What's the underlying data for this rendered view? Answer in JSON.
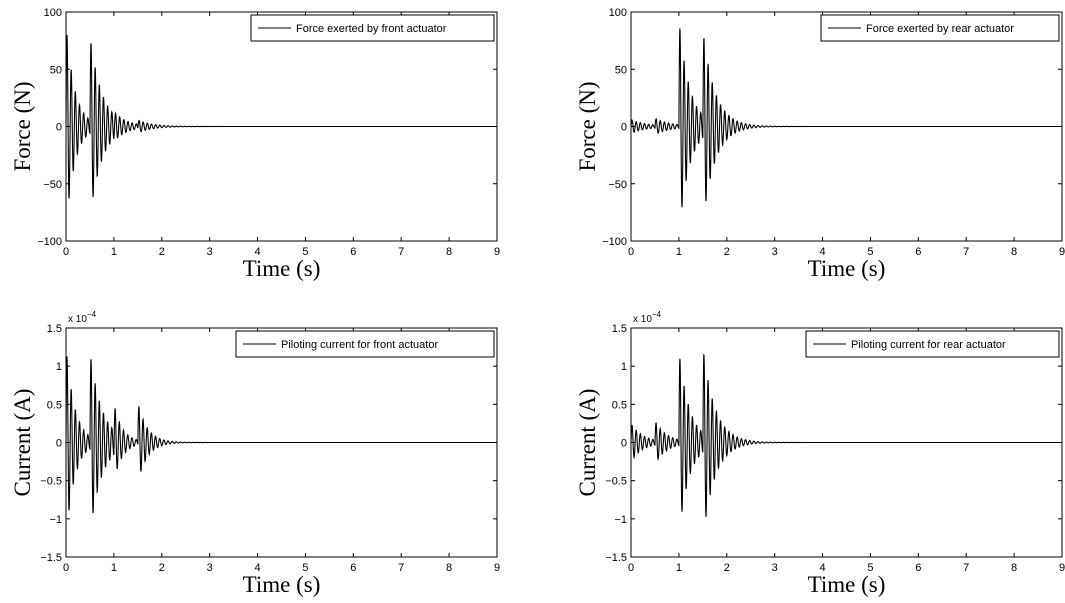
{
  "chart_data": [
    {
      "type": "line",
      "xlabel": "Time (s)",
      "ylabel": "Force (N)",
      "xlim": [
        0,
        9
      ],
      "ylim": [
        -100,
        100
      ],
      "xticks": [
        "0",
        "1",
        "2",
        "3",
        "4",
        "5",
        "6",
        "7",
        "8",
        "9"
      ],
      "yticks": [
        "-100",
        "-50",
        "0",
        "50",
        "100"
      ],
      "exponent_label": "",
      "grid": false,
      "legend_position": "top-right",
      "series": [
        {
          "name": "Force exerted by front actuator",
          "color": "#000000",
          "bursts": [
            {
              "t0": 0.0,
              "amp": 90,
              "decay": 5.5,
              "freq": 11.5
            },
            {
              "t0": 0.5,
              "amp": 80,
              "decay": 4.0,
              "freq": 11.5
            },
            {
              "t0": 1.0,
              "amp": 8,
              "decay": 3.5,
              "freq": 11.5
            },
            {
              "t0": 1.5,
              "amp": 7,
              "decay": 3.5,
              "freq": 11.5
            }
          ],
          "points": [
            [
              0.0,
              0
            ],
            [
              0.02,
              -95
            ],
            [
              0.06,
              31
            ],
            [
              0.1,
              -45
            ],
            [
              0.16,
              2
            ],
            [
              0.22,
              -28
            ],
            [
              0.28,
              -10
            ],
            [
              0.35,
              -18
            ],
            [
              0.45,
              -12
            ],
            [
              0.5,
              -16
            ],
            [
              0.54,
              80
            ],
            [
              0.58,
              -48
            ],
            [
              0.62,
              30
            ],
            [
              0.66,
              -20
            ],
            [
              0.7,
              12
            ],
            [
              0.75,
              -8
            ],
            [
              0.8,
              5
            ],
            [
              0.9,
              -5
            ],
            [
              1.0,
              6
            ],
            [
              1.1,
              -6
            ],
            [
              1.3,
              5
            ],
            [
              1.5,
              -5
            ],
            [
              1.6,
              5
            ],
            [
              1.8,
              -3
            ],
            [
              2.0,
              2
            ],
            [
              2.2,
              1
            ],
            [
              2.4,
              0
            ],
            [
              9.0,
              0
            ]
          ]
        }
      ]
    },
    {
      "type": "line",
      "xlabel": "Time (s)",
      "ylabel": "Force (N)",
      "xlim": [
        0,
        9
      ],
      "ylim": [
        -100,
        100
      ],
      "xticks": [
        "0",
        "1",
        "2",
        "3",
        "4",
        "5",
        "6",
        "7",
        "8",
        "9"
      ],
      "yticks": [
        "-100",
        "-50",
        "0",
        "50",
        "100"
      ],
      "exponent_label": "",
      "grid": false,
      "legend_position": "top-right",
      "series": [
        {
          "name": "Force exerted by rear actuator",
          "color": "#000000",
          "bursts": [
            {
              "t0": 0.0,
              "amp": 6,
              "decay": 3.0,
              "freq": 11.5
            },
            {
              "t0": 0.5,
              "amp": 7,
              "decay": 3.0,
              "freq": 11.5
            },
            {
              "t0": 1.0,
              "amp": 95,
              "decay": 4.5,
              "freq": 11.5
            },
            {
              "t0": 1.5,
              "amp": 85,
              "decay": 4.0,
              "freq": 11.5
            }
          ],
          "points": [
            [
              0.0,
              0
            ],
            [
              0.05,
              -6
            ],
            [
              0.1,
              5
            ],
            [
              0.2,
              -4
            ],
            [
              0.3,
              3
            ],
            [
              0.5,
              -7
            ],
            [
              0.55,
              7
            ],
            [
              0.7,
              -5
            ],
            [
              0.9,
              3
            ],
            [
              1.02,
              -98
            ],
            [
              1.07,
              40
            ],
            [
              1.12,
              -53
            ],
            [
              1.17,
              10
            ],
            [
              1.25,
              -20
            ],
            [
              1.35,
              -8
            ],
            [
              1.45,
              -12
            ],
            [
              1.52,
              85
            ],
            [
              1.57,
              -56
            ],
            [
              1.62,
              38
            ],
            [
              1.68,
              -20
            ],
            [
              1.74,
              17
            ],
            [
              1.8,
              -8
            ],
            [
              2.0,
              4
            ],
            [
              2.2,
              1
            ],
            [
              2.4,
              0
            ],
            [
              9.0,
              0
            ]
          ]
        }
      ]
    },
    {
      "type": "line",
      "xlabel": "Time (s)",
      "ylabel": "Current (A)",
      "xlim": [
        0,
        9
      ],
      "ylim": [
        -1.5,
        1.5
      ],
      "xticks": [
        "0",
        "1",
        "2",
        "3",
        "4",
        "5",
        "6",
        "7",
        "8",
        "9"
      ],
      "yticks": [
        "-1.5",
        "-1",
        "-0.5",
        "0",
        "0.5",
        "1",
        "1.5"
      ],
      "exponent_label": "x 10",
      "exponent_power": "-4",
      "grid": false,
      "legend_position": "top-right",
      "series": [
        {
          "name": "Piloting current for front actuator",
          "color": "#000000",
          "bursts": [
            {
              "t0": 0.0,
              "amp": 1.27,
              "decay": 5.5,
              "freq": 11.5
            },
            {
              "t0": 0.5,
              "amp": 1.2,
              "decay": 4.0,
              "freq": 11.5
            },
            {
              "t0": 1.0,
              "amp": 0.5,
              "decay": 6.0,
              "freq": 11.5
            },
            {
              "t0": 1.5,
              "amp": 0.55,
              "decay": 5.0,
              "freq": 11.5
            }
          ],
          "points": [
            [
              0.0,
              0
            ],
            [
              0.02,
              1.27
            ],
            [
              0.05,
              -0.72
            ],
            [
              0.1,
              0.45
            ],
            [
              0.15,
              -0.3
            ],
            [
              0.25,
              0.2
            ],
            [
              0.35,
              -0.15
            ],
            [
              0.45,
              0.1
            ],
            [
              0.5,
              0.68
            ],
            [
              0.55,
              -1.22
            ],
            [
              0.6,
              0.76
            ],
            [
              0.65,
              -0.45
            ],
            [
              0.7,
              0.3
            ],
            [
              0.8,
              -0.2
            ],
            [
              0.9,
              0.12
            ],
            [
              1.0,
              0.53
            ],
            [
              1.02,
              -0.35
            ],
            [
              1.1,
              0.1
            ],
            [
              1.3,
              -0.1
            ],
            [
              1.5,
              0.22
            ],
            [
              1.52,
              -0.57
            ],
            [
              1.6,
              0.1
            ],
            [
              1.8,
              0.05
            ],
            [
              2.2,
              0.01
            ],
            [
              2.4,
              0
            ],
            [
              9.0,
              0
            ]
          ]
        }
      ]
    },
    {
      "type": "line",
      "xlabel": "Time (s)",
      "ylabel": "Current (A)",
      "xlim": [
        0,
        9
      ],
      "ylim": [
        -1.5,
        1.5
      ],
      "xticks": [
        "0",
        "1",
        "2",
        "3",
        "4",
        "5",
        "6",
        "7",
        "8",
        "9"
      ],
      "yticks": [
        "-1.5",
        "-1",
        "-0.5",
        "0",
        "0.5",
        "1",
        "1.5"
      ],
      "exponent_label": "x 10",
      "exponent_power": "-4",
      "grid": false,
      "legend_position": "top-right",
      "series": [
        {
          "name": "Piloting current for rear actuator",
          "color": "#000000",
          "bursts": [
            {
              "t0": 0.0,
              "amp": 0.25,
              "decay": 4.0,
              "freq": 11.5
            },
            {
              "t0": 0.5,
              "amp": 0.28,
              "decay": 4.0,
              "freq": 11.5
            },
            {
              "t0": 1.0,
              "amp": 1.22,
              "decay": 4.5,
              "freq": 11.5
            },
            {
              "t0": 1.5,
              "amp": 1.27,
              "decay": 4.0,
              "freq": 11.5
            }
          ],
          "points": [
            [
              0.0,
              0
            ],
            [
              0.02,
              0.25
            ],
            [
              0.05,
              -0.45
            ],
            [
              0.1,
              0.15
            ],
            [
              0.3,
              -0.1
            ],
            [
              0.5,
              -0.28
            ],
            [
              0.55,
              0.15
            ],
            [
              0.7,
              0.1
            ],
            [
              0.9,
              -0.05
            ],
            [
              1.02,
              -0.57
            ],
            [
              1.07,
              1.22
            ],
            [
              1.12,
              -0.83
            ],
            [
              1.17,
              0.6
            ],
            [
              1.25,
              -0.4
            ],
            [
              1.35,
              0.3
            ],
            [
              1.45,
              0.2
            ],
            [
              1.52,
              0.75
            ],
            [
              1.57,
              -1.27
            ],
            [
              1.62,
              0.86
            ],
            [
              1.68,
              -0.5
            ],
            [
              1.74,
              0.3
            ],
            [
              1.85,
              -0.1
            ],
            [
              2.0,
              0.05
            ],
            [
              2.4,
              0
            ],
            [
              9.0,
              0
            ]
          ]
        }
      ]
    }
  ]
}
